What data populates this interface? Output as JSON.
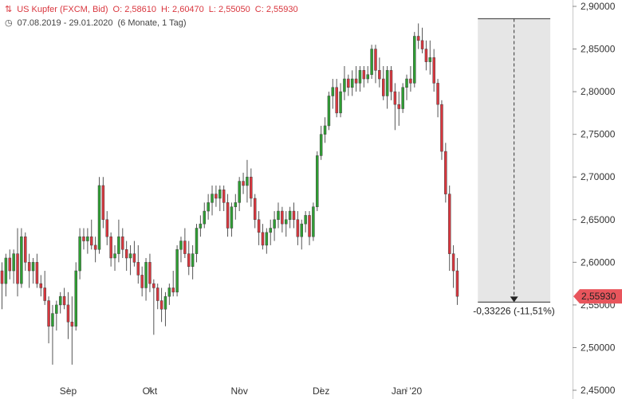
{
  "header": {
    "title": "US Kupfer (FXCM, Bid)",
    "open": "O: 2,58610",
    "high": "H: 2,60470",
    "low": "L: 2,55050",
    "close": "C: 2,55930",
    "range": "07.08.2019 - 29.01.2020",
    "period": "(6 Monate, 1 Tag)"
  },
  "price_badge": "2,55930",
  "measure_label": "-0,33226 (-11,51%)",
  "colors": {
    "up": "#2e9e33",
    "down": "#d9363e",
    "badge": "#e8555c",
    "shade": "#e6e6e6"
  },
  "chart_data": {
    "type": "candlestick",
    "y_ticks": [
      "2,90000",
      "2,85000",
      "2,80000",
      "2,75000",
      "2,70000",
      "2,65000",
      "2,60000",
      "2,55000",
      "2,50000",
      "2,45000"
    ],
    "ylim": [
      2.45,
      2.9
    ],
    "x_ticks": [
      {
        "label": "Sep",
        "index": 17
      },
      {
        "label": "Okt",
        "index": 38
      },
      {
        "label": "Nov",
        "index": 61
      },
      {
        "label": "Dez",
        "index": 82
      },
      {
        "label": "Jan '20",
        "index": 104
      }
    ],
    "measurement": {
      "from_index": 123,
      "to_index": 141,
      "from_price": 2.8855,
      "to_price": 2.5533
    },
    "candles": [
      [
        2.59,
        2.6,
        2.545,
        2.575
      ],
      [
        2.575,
        2.61,
        2.56,
        2.605
      ],
      [
        2.605,
        2.615,
        2.58,
        2.59
      ],
      [
        2.59,
        2.615,
        2.575,
        2.61
      ],
      [
        2.61,
        2.64,
        2.56,
        2.575
      ],
      [
        2.575,
        2.64,
        2.57,
        2.63
      ],
      [
        2.63,
        2.635,
        2.59,
        2.6
      ],
      [
        2.6,
        2.61,
        2.57,
        2.59
      ],
      [
        2.59,
        2.605,
        2.575,
        2.6
      ],
      [
        2.6,
        2.61,
        2.57,
        2.575
      ],
      [
        2.575,
        2.585,
        2.56,
        2.57
      ],
      [
        2.57,
        2.59,
        2.55,
        2.555
      ],
      [
        2.555,
        2.56,
        2.505,
        2.525
      ],
      [
        2.525,
        2.55,
        2.48,
        2.54
      ],
      [
        2.54,
        2.555,
        2.52,
        2.55
      ],
      [
        2.55,
        2.565,
        2.54,
        2.56
      ],
      [
        2.56,
        2.57,
        2.545,
        2.55
      ],
      [
        2.55,
        2.565,
        2.51,
        2.53
      ],
      [
        2.53,
        2.56,
        2.48,
        2.525
      ],
      [
        2.525,
        2.6,
        2.52,
        2.59
      ],
      [
        2.59,
        2.64,
        2.58,
        2.63
      ],
      [
        2.63,
        2.64,
        2.615,
        2.625
      ],
      [
        2.625,
        2.64,
        2.61,
        2.63
      ],
      [
        2.63,
        2.65,
        2.615,
        2.62
      ],
      [
        2.62,
        2.63,
        2.6,
        2.615
      ],
      [
        2.615,
        2.7,
        2.61,
        2.69
      ],
      [
        2.69,
        2.7,
        2.64,
        2.65
      ],
      [
        2.65,
        2.66,
        2.62,
        2.63
      ],
      [
        2.63,
        2.635,
        2.595,
        2.605
      ],
      [
        2.605,
        2.62,
        2.59,
        2.61
      ],
      [
        2.61,
        2.65,
        2.6,
        2.63
      ],
      [
        2.63,
        2.64,
        2.605,
        2.615
      ],
      [
        2.615,
        2.625,
        2.59,
        2.605
      ],
      [
        2.605,
        2.62,
        2.585,
        2.61
      ],
      [
        2.61,
        2.625,
        2.595,
        2.6
      ],
      [
        2.6,
        2.62,
        2.575,
        2.585
      ],
      [
        2.585,
        2.595,
        2.56,
        2.57
      ],
      [
        2.57,
        2.605,
        2.555,
        2.6
      ],
      [
        2.6,
        2.61,
        2.565,
        2.575
      ],
      [
        2.575,
        2.58,
        2.515,
        2.57
      ],
      [
        2.57,
        2.575,
        2.545,
        2.555
      ],
      [
        2.555,
        2.57,
        2.53,
        2.545
      ],
      [
        2.545,
        2.565,
        2.525,
        2.56
      ],
      [
        2.56,
        2.575,
        2.55,
        2.57
      ],
      [
        2.57,
        2.59,
        2.56,
        2.565
      ],
      [
        2.565,
        2.62,
        2.56,
        2.615
      ],
      [
        2.615,
        2.63,
        2.6,
        2.625
      ],
      [
        2.625,
        2.64,
        2.605,
        2.61
      ],
      [
        2.61,
        2.625,
        2.585,
        2.595
      ],
      [
        2.595,
        2.62,
        2.58,
        2.61
      ],
      [
        2.61,
        2.645,
        2.6,
        2.64
      ],
      [
        2.64,
        2.655,
        2.63,
        2.645
      ],
      [
        2.645,
        2.67,
        2.64,
        2.66
      ],
      [
        2.66,
        2.68,
        2.65,
        2.67
      ],
      [
        2.67,
        2.69,
        2.655,
        2.68
      ],
      [
        2.68,
        2.69,
        2.665,
        2.675
      ],
      [
        2.675,
        2.69,
        2.66,
        2.685
      ],
      [
        2.685,
        2.69,
        2.66,
        2.67
      ],
      [
        2.67,
        2.68,
        2.63,
        2.64
      ],
      [
        2.64,
        2.67,
        2.63,
        2.665
      ],
      [
        2.665,
        2.68,
        2.65,
        2.67
      ],
      [
        2.67,
        2.7,
        2.66,
        2.695
      ],
      [
        2.695,
        2.705,
        2.68,
        2.69
      ],
      [
        2.69,
        2.72,
        2.67,
        2.7
      ],
      [
        2.7,
        2.71,
        2.665,
        2.675
      ],
      [
        2.675,
        2.68,
        2.64,
        2.65
      ],
      [
        2.65,
        2.66,
        2.62,
        2.635
      ],
      [
        2.635,
        2.645,
        2.615,
        2.62
      ],
      [
        2.62,
        2.64,
        2.61,
        2.635
      ],
      [
        2.635,
        2.65,
        2.62,
        2.64
      ],
      [
        2.64,
        2.66,
        2.625,
        2.65
      ],
      [
        2.65,
        2.67,
        2.64,
        2.66
      ],
      [
        2.66,
        2.665,
        2.635,
        2.645
      ],
      [
        2.645,
        2.66,
        2.63,
        2.65
      ],
      [
        2.65,
        2.665,
        2.64,
        2.66
      ],
      [
        2.66,
        2.67,
        2.64,
        2.65
      ],
      [
        2.65,
        2.66,
        2.62,
        2.63
      ],
      [
        2.63,
        2.65,
        2.615,
        2.645
      ],
      [
        2.645,
        2.66,
        2.635,
        2.655
      ],
      [
        2.655,
        2.66,
        2.62,
        2.63
      ],
      [
        2.63,
        2.67,
        2.625,
        2.665
      ],
      [
        2.665,
        2.73,
        2.66,
        2.725
      ],
      [
        2.725,
        2.76,
        2.72,
        2.75
      ],
      [
        2.75,
        2.77,
        2.74,
        2.76
      ],
      [
        2.76,
        2.8,
        2.755,
        2.795
      ],
      [
        2.795,
        2.815,
        2.78,
        2.805
      ],
      [
        2.805,
        2.815,
        2.77,
        2.775
      ],
      [
        2.775,
        2.81,
        2.77,
        2.8
      ],
      [
        2.8,
        2.83,
        2.79,
        2.815
      ],
      [
        2.815,
        2.82,
        2.795,
        2.805
      ],
      [
        2.805,
        2.825,
        2.795,
        2.815
      ],
      [
        2.815,
        2.83,
        2.8,
        2.81
      ],
      [
        2.81,
        2.83,
        2.8,
        2.825
      ],
      [
        2.825,
        2.83,
        2.805,
        2.815
      ],
      [
        2.815,
        2.83,
        2.81,
        2.82
      ],
      [
        2.82,
        2.855,
        2.815,
        2.85
      ],
      [
        2.85,
        2.855,
        2.81,
        2.825
      ],
      [
        2.825,
        2.84,
        2.805,
        2.815
      ],
      [
        2.815,
        2.83,
        2.79,
        2.795
      ],
      [
        2.795,
        2.83,
        2.78,
        2.825
      ],
      [
        2.825,
        2.83,
        2.79,
        2.8
      ],
      [
        2.8,
        2.81,
        2.755,
        2.785
      ],
      [
        2.785,
        2.8,
        2.76,
        2.78
      ],
      [
        2.78,
        2.81,
        2.775,
        2.805
      ],
      [
        2.805,
        2.82,
        2.79,
        2.815
      ],
      [
        2.815,
        2.83,
        2.8,
        2.81
      ],
      [
        2.81,
        2.87,
        2.805,
        2.865
      ],
      [
        2.865,
        2.88,
        2.85,
        2.86
      ],
      [
        2.86,
        2.875,
        2.845,
        2.85
      ],
      [
        2.85,
        2.86,
        2.825,
        2.835
      ],
      [
        2.835,
        2.86,
        2.82,
        2.84
      ],
      [
        2.84,
        2.85,
        2.8,
        2.81
      ],
      [
        2.81,
        2.815,
        2.77,
        2.785
      ],
      [
        2.785,
        2.79,
        2.72,
        2.73
      ],
      [
        2.73,
        2.74,
        2.67,
        2.68
      ],
      [
        2.68,
        2.69,
        2.59,
        2.61
      ],
      [
        2.61,
        2.62,
        2.57,
        2.59
      ],
      [
        2.59,
        2.605,
        2.55,
        2.56
      ]
    ]
  }
}
